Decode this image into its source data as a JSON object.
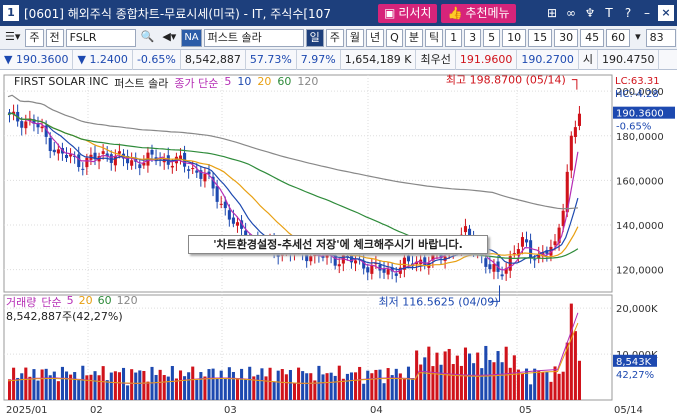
{
  "window": {
    "num": "1",
    "title": "[0601] 해외주식 종합차트-무료시세(미국) - IT, 주식수[107",
    "btn_research": "리서치",
    "btn_recommend": "추천메뉴"
  },
  "toolbar": {
    "menu": "주",
    "market": "전",
    "symbol": "FSLR",
    "na": "NA",
    "name": "퍼스트 솔라",
    "periods": [
      "일",
      "주",
      "월",
      "년",
      "Q",
      "분",
      "틱"
    ],
    "minutes": [
      "1",
      "3",
      "5",
      "10",
      "15",
      "30",
      "45",
      "60"
    ],
    "count": "83"
  },
  "quote": {
    "price": "190.3600",
    "change": "1.2400",
    "change_pct": "-0.65%",
    "volume": "8,542,887",
    "pct1": "57.73%",
    "pct2": "7.97%",
    "amount": "1,654,189 K",
    "best_label": "최우선",
    "best_ask": "191.9600",
    "best_bid": "190.2700",
    "open_label": "시",
    "open": "190.4750"
  },
  "chart": {
    "company": "FIRST SOLAR INC",
    "name_short": "퍼스트 솔라",
    "legend_label": "종가 단순",
    "ma": [
      "5",
      "10",
      "20",
      "60",
      "120"
    ],
    "lc": "LC:63.31",
    "hc": "HC:-4.28",
    "high_label": "최고 198.8700 (05/14)",
    "low_label": "최저 116.5625 (04/09)",
    "current_price": "190.3600",
    "current_pct": "-0.65%",
    "price_ticks": [
      "200,0000",
      "180,0000",
      "160,0000",
      "140,0000",
      "120,0000"
    ],
    "tip": "'차트환경설정-추세선 저장'에 체크해주시기 바랍니다.",
    "volume_label": "거래량",
    "volume_legend": "단순",
    "volume_ma": [
      "5",
      "20",
      "60",
      "120"
    ],
    "volume_value": "8,542,887주(42,27%)",
    "vol_ticks": [
      "20,000K",
      "10,000K"
    ],
    "vol_current": "8,543K",
    "vol_pct": "42,27%",
    "dates": [
      "2025/01",
      "02",
      "03",
      "04",
      "05",
      "05/14"
    ],
    "colors": {
      "up": "#d0131b",
      "down": "#1d49b0",
      "ma5": "#b52db5",
      "ma10": "#1d49b0",
      "ma20": "#e8a013",
      "ma60": "#2e8b3a",
      "ma120": "#888888"
    }
  },
  "chart_data": {
    "type": "candlestick",
    "title": "FIRST SOLAR INC",
    "ylim": [
      110,
      205
    ],
    "high": 198.87,
    "low": 116.5625,
    "last": 190.36
  }
}
